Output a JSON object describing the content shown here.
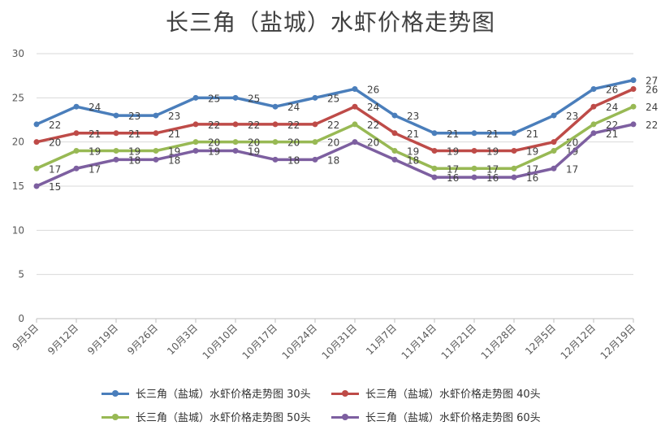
{
  "chart_data": {
    "type": "line",
    "title": "长三角（盐城）水虾价格走势图",
    "xlabel": "",
    "ylabel": "",
    "ylim": [
      0,
      30
    ],
    "yticks": [
      0,
      5,
      10,
      15,
      20,
      25,
      30
    ],
    "grid": true,
    "legend_position": "bottom",
    "categories": [
      "9月5日",
      "9月12日",
      "9月19日",
      "9月26日",
      "10月3日",
      "10月10日",
      "10月17日",
      "10月24日",
      "10月31日",
      "11月7日",
      "11月14日",
      "11月21日",
      "11月28日",
      "12月5日",
      "12月12日",
      "12月19日"
    ],
    "series": [
      {
        "name": "长三角（盐城）水虾价格走势图 30头",
        "color": "#4a7ebb",
        "values": [
          22,
          24,
          23,
          23,
          25,
          25,
          24,
          25,
          26,
          23,
          21,
          21,
          21,
          23,
          26,
          27
        ]
      },
      {
        "name": "长三角（盐城）水虾价格走势图 40头",
        "color": "#be4b48",
        "values": [
          20,
          21,
          21,
          21,
          22,
          22,
          22,
          22,
          24,
          21,
          19,
          19,
          19,
          20,
          24,
          26
        ]
      },
      {
        "name": "长三角（盐城）水虾价格走势图 50头",
        "color": "#98b954",
        "values": [
          17,
          19,
          19,
          19,
          20,
          20,
          20,
          20,
          22,
          19,
          17,
          17,
          17,
          19,
          22,
          24
        ]
      },
      {
        "name": "长三角（盐城）水虾价格走势图 60头",
        "color": "#7d5fa0",
        "values": [
          15,
          17,
          18,
          18,
          19,
          19,
          18,
          18,
          20,
          18,
          16,
          16,
          16,
          17,
          21,
          22
        ]
      }
    ]
  }
}
